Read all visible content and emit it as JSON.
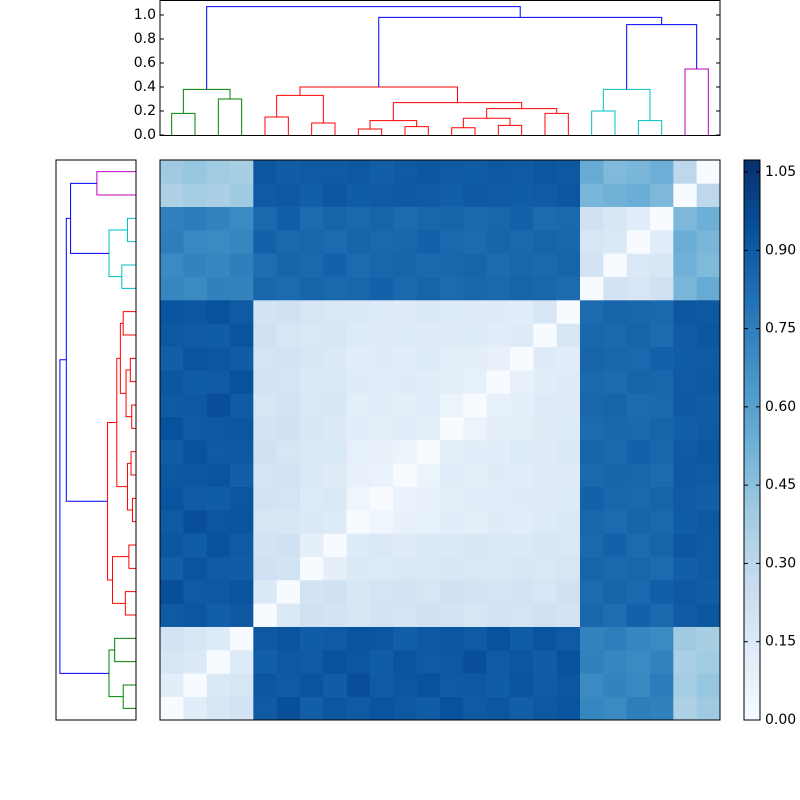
{
  "chart_data": {
    "type": "clustermap",
    "matrix": [
      [
        0,
        0.12,
        0.18,
        0.2,
        0.9,
        0.95,
        0.88,
        0.92,
        0.9,
        0.93,
        0.91,
        0.89,
        0.94,
        0.9,
        0.92,
        0.88,
        0.91,
        0.93,
        0.72,
        0.7,
        0.75,
        0.74,
        0.35,
        0.4
      ],
      [
        0.12,
        0,
        0.15,
        0.18,
        0.92,
        0.9,
        0.93,
        0.89,
        0.95,
        0.9,
        0.92,
        0.94,
        0.9,
        0.91,
        0.89,
        0.93,
        0.9,
        0.92,
        0.7,
        0.73,
        0.71,
        0.76,
        0.38,
        0.42
      ],
      [
        0.18,
        0.15,
        0,
        0.14,
        0.88,
        0.91,
        0.9,
        0.94,
        0.92,
        0.89,
        0.93,
        0.9,
        0.91,
        0.95,
        0.9,
        0.92,
        0.89,
        0.94,
        0.74,
        0.72,
        0.7,
        0.73,
        0.36,
        0.39
      ],
      [
        0.2,
        0.18,
        0.14,
        0,
        0.91,
        0.93,
        0.89,
        0.9,
        0.93,
        0.92,
        0.88,
        0.91,
        0.92,
        0.9,
        0.94,
        0.89,
        0.93,
        0.9,
        0.73,
        0.75,
        0.72,
        0.7,
        0.4,
        0.37
      ],
      [
        0.9,
        0.92,
        0.88,
        0.91,
        0,
        0.15,
        0.22,
        0.2,
        0.18,
        0.2,
        0.19,
        0.21,
        0.2,
        0.18,
        0.2,
        0.19,
        0.22,
        0.2,
        0.85,
        0.82,
        0.87,
        0.84,
        0.9,
        0.92
      ],
      [
        0.95,
        0.9,
        0.91,
        0.93,
        0.15,
        0,
        0.2,
        0.22,
        0.17,
        0.19,
        0.2,
        0.18,
        0.21,
        0.2,
        0.19,
        0.2,
        0.18,
        0.21,
        0.83,
        0.86,
        0.84,
        0.88,
        0.91,
        0.89
      ],
      [
        0.88,
        0.93,
        0.9,
        0.89,
        0.22,
        0.2,
        0,
        0.1,
        0.15,
        0.14,
        0.16,
        0.15,
        0.17,
        0.16,
        0.15,
        0.17,
        0.16,
        0.18,
        0.86,
        0.84,
        0.85,
        0.83,
        0.88,
        0.9
      ],
      [
        0.92,
        0.89,
        0.94,
        0.9,
        0.2,
        0.22,
        0.1,
        0,
        0.14,
        0.15,
        0.13,
        0.16,
        0.15,
        0.17,
        0.16,
        0.15,
        0.17,
        0.16,
        0.84,
        0.87,
        0.83,
        0.86,
        0.92,
        0.9
      ],
      [
        0.9,
        0.95,
        0.92,
        0.93,
        0.18,
        0.17,
        0.15,
        0.14,
        0,
        0.05,
        0.08,
        0.09,
        0.12,
        0.11,
        0.13,
        0.12,
        0.14,
        0.15,
        0.85,
        0.83,
        0.86,
        0.84,
        0.89,
        0.91
      ],
      [
        0.93,
        0.9,
        0.89,
        0.92,
        0.2,
        0.19,
        0.14,
        0.15,
        0.05,
        0,
        0.07,
        0.08,
        0.11,
        0.12,
        0.12,
        0.13,
        0.13,
        0.14,
        0.87,
        0.85,
        0.84,
        0.86,
        0.9,
        0.88
      ],
      [
        0.91,
        0.92,
        0.93,
        0.88,
        0.19,
        0.2,
        0.16,
        0.13,
        0.08,
        0.07,
        0,
        0.06,
        0.12,
        0.11,
        0.13,
        0.12,
        0.14,
        0.13,
        0.84,
        0.86,
        0.85,
        0.83,
        0.91,
        0.9
      ],
      [
        0.89,
        0.94,
        0.9,
        0.91,
        0.21,
        0.18,
        0.15,
        0.16,
        0.09,
        0.08,
        0.06,
        0,
        0.11,
        0.12,
        0.12,
        0.14,
        0.13,
        0.15,
        0.86,
        0.84,
        0.87,
        0.85,
        0.9,
        0.92
      ],
      [
        0.94,
        0.9,
        0.91,
        0.92,
        0.2,
        0.21,
        0.17,
        0.15,
        0.12,
        0.11,
        0.12,
        0.11,
        0,
        0.06,
        0.1,
        0.11,
        0.13,
        0.14,
        0.83,
        0.85,
        0.84,
        0.86,
        0.88,
        0.9
      ],
      [
        0.9,
        0.91,
        0.95,
        0.9,
        0.18,
        0.2,
        0.16,
        0.17,
        0.11,
        0.12,
        0.11,
        0.12,
        0.06,
        0,
        0.09,
        0.1,
        0.14,
        0.13,
        0.85,
        0.86,
        0.83,
        0.84,
        0.91,
        0.89
      ],
      [
        0.92,
        0.89,
        0.9,
        0.94,
        0.2,
        0.19,
        0.15,
        0.16,
        0.13,
        0.12,
        0.13,
        0.12,
        0.1,
        0.09,
        0,
        0.08,
        0.12,
        0.13,
        0.84,
        0.83,
        0.86,
        0.85,
        0.9,
        0.91
      ],
      [
        0.88,
        0.93,
        0.92,
        0.89,
        0.19,
        0.2,
        0.17,
        0.15,
        0.12,
        0.13,
        0.12,
        0.14,
        0.11,
        0.1,
        0.08,
        0,
        0.13,
        0.12,
        0.86,
        0.85,
        0.84,
        0.87,
        0.89,
        0.9
      ],
      [
        0.91,
        0.9,
        0.89,
        0.93,
        0.22,
        0.18,
        0.16,
        0.17,
        0.14,
        0.13,
        0.14,
        0.13,
        0.13,
        0.14,
        0.12,
        0.13,
        0,
        0.18,
        0.85,
        0.84,
        0.86,
        0.83,
        0.9,
        0.92
      ],
      [
        0.93,
        0.92,
        0.94,
        0.9,
        0.2,
        0.21,
        0.18,
        0.16,
        0.15,
        0.14,
        0.13,
        0.15,
        0.14,
        0.13,
        0.13,
        0.12,
        0.18,
        0,
        0.83,
        0.86,
        0.85,
        0.84,
        0.92,
        0.91
      ],
      [
        0.72,
        0.7,
        0.74,
        0.73,
        0.85,
        0.83,
        0.86,
        0.84,
        0.85,
        0.87,
        0.84,
        0.86,
        0.83,
        0.85,
        0.84,
        0.86,
        0.85,
        0.83,
        0,
        0.2,
        0.18,
        0.22,
        0.5,
        0.55
      ],
      [
        0.7,
        0.73,
        0.72,
        0.75,
        0.82,
        0.86,
        0.84,
        0.87,
        0.83,
        0.85,
        0.86,
        0.84,
        0.85,
        0.86,
        0.83,
        0.85,
        0.84,
        0.86,
        0.2,
        0,
        0.15,
        0.17,
        0.52,
        0.48
      ],
      [
        0.75,
        0.71,
        0.7,
        0.72,
        0.87,
        0.84,
        0.85,
        0.83,
        0.86,
        0.84,
        0.85,
        0.87,
        0.84,
        0.83,
        0.86,
        0.84,
        0.86,
        0.85,
        0.18,
        0.15,
        0,
        0.12,
        0.54,
        0.5
      ],
      [
        0.74,
        0.76,
        0.73,
        0.7,
        0.84,
        0.88,
        0.83,
        0.86,
        0.84,
        0.86,
        0.83,
        0.85,
        0.86,
        0.84,
        0.85,
        0.87,
        0.83,
        0.84,
        0.22,
        0.17,
        0.12,
        0,
        0.49,
        0.53
      ],
      [
        0.35,
        0.38,
        0.36,
        0.4,
        0.9,
        0.91,
        0.88,
        0.92,
        0.89,
        0.9,
        0.91,
        0.9,
        0.88,
        0.91,
        0.9,
        0.89,
        0.9,
        0.92,
        0.5,
        0.52,
        0.54,
        0.49,
        0,
        0.3
      ],
      [
        0.4,
        0.42,
        0.39,
        0.37,
        0.92,
        0.89,
        0.9,
        0.9,
        0.91,
        0.88,
        0.9,
        0.92,
        0.9,
        0.89,
        0.91,
        0.9,
        0.92,
        0.91,
        0.55,
        0.48,
        0.5,
        0.53,
        0.3,
        0
      ]
    ],
    "clim": [
      0,
      1.073
    ],
    "colormap": [
      "#f7fbff",
      "#deebf7",
      "#c6dbef",
      "#9ecae1",
      "#6baed6",
      "#4292c6",
      "#2171b5",
      "#08519c",
      "#08306b"
    ],
    "colorbar_ticks": [
      {
        "value": 0,
        "label": "0.00"
      },
      {
        "value": 0.15,
        "label": "0.15"
      },
      {
        "value": 0.3,
        "label": "0.30"
      },
      {
        "value": 0.45,
        "label": "0.45"
      },
      {
        "value": 0.6,
        "label": "0.60"
      },
      {
        "value": 0.75,
        "label": "0.75"
      },
      {
        "value": 0.9,
        "label": "0.90"
      },
      {
        "value": 1.05,
        "label": "1.05"
      }
    ],
    "dendrogram": {
      "merges": [
        [
          0,
          1,
          0.18
        ],
        [
          2,
          3,
          0.3
        ],
        [
          24,
          25,
          0.38
        ],
        [
          4,
          5,
          0.15
        ],
        [
          6,
          7,
          0.1
        ],
        [
          27,
          28,
          0.33
        ],
        [
          8,
          9,
          0.05
        ],
        [
          10,
          11,
          0.07
        ],
        [
          30,
          31,
          0.12
        ],
        [
          12,
          13,
          0.06
        ],
        [
          14,
          15,
          0.08
        ],
        [
          33,
          34,
          0.14
        ],
        [
          16,
          17,
          0.18
        ],
        [
          35,
          36,
          0.22
        ],
        [
          32,
          37,
          0.27
        ],
        [
          29,
          38,
          0.4
        ],
        [
          18,
          19,
          0.2
        ],
        [
          20,
          21,
          0.12
        ],
        [
          40,
          41,
          0.38
        ],
        [
          22,
          23,
          0.55
        ],
        [
          42,
          43,
          0.92
        ],
        [
          39,
          44,
          0.98
        ],
        [
          26,
          45,
          1.07
        ]
      ],
      "link_colors": [
        "#008000",
        "#008000",
        "#008000",
        "#ff0000",
        "#ff0000",
        "#ff0000",
        "#ff0000",
        "#ff0000",
        "#ff0000",
        "#ff0000",
        "#ff0000",
        "#ff0000",
        "#ff0000",
        "#ff0000",
        "#ff0000",
        "#ff0000",
        "#00bfbf",
        "#00bfbf",
        "#00bfbf",
        "#bf00bf",
        "#0000ff",
        "#0000ff",
        "#0000ff"
      ],
      "ylim": [
        0,
        1.125
      ],
      "yticks": [
        {
          "value": 0,
          "label": "0.0"
        },
        {
          "value": 0.2,
          "label": "0.2"
        },
        {
          "value": 0.4,
          "label": "0.4"
        },
        {
          "value": 0.6,
          "label": "0.6"
        },
        {
          "value": 0.8,
          "label": "0.8"
        },
        {
          "value": 1,
          "label": "1.0"
        }
      ]
    }
  }
}
